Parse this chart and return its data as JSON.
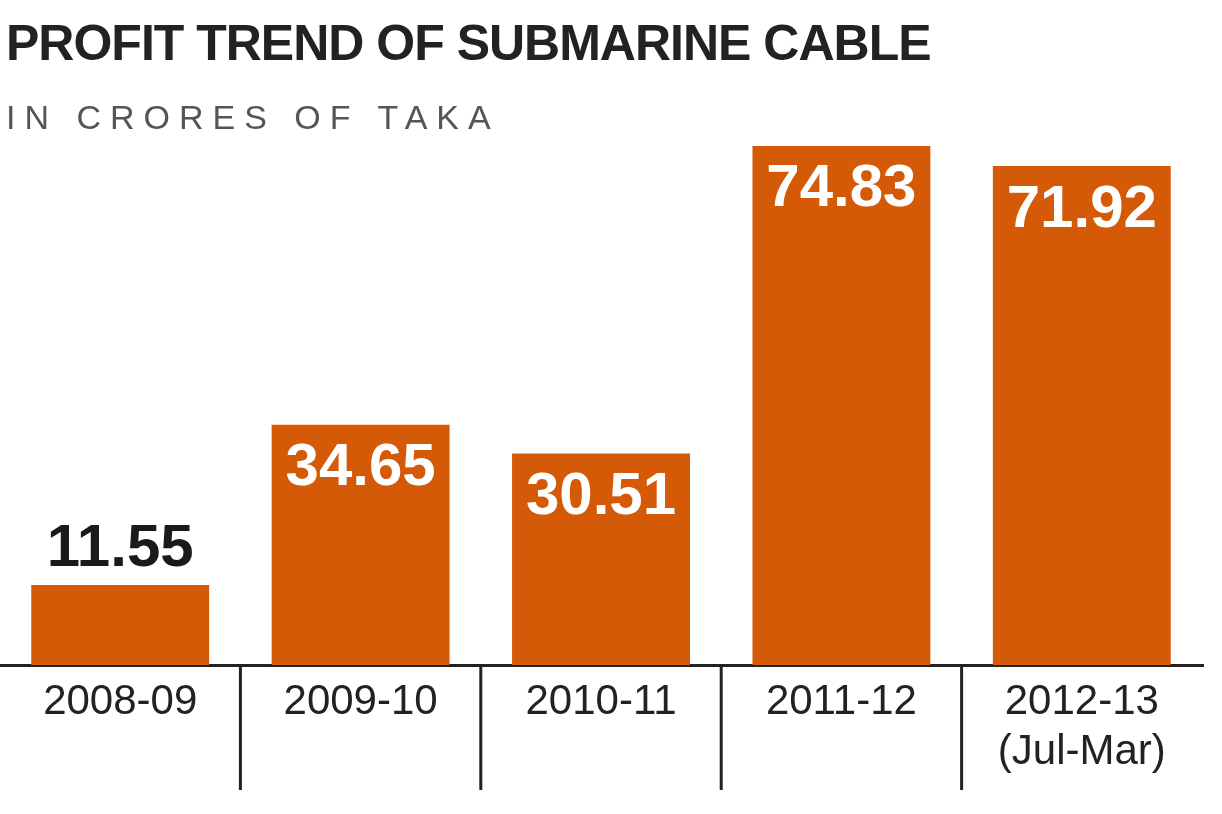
{
  "chart_data": {
    "type": "bar",
    "title": "PROFIT TREND OF SUBMARINE CABLE",
    "subtitle": "IN CRORES OF TAKA",
    "categories": [
      "2008-09",
      "2009-10",
      "2010-11",
      "2011-12",
      "2012-13 (Jul-Mar)"
    ],
    "values": [
      11.55,
      34.65,
      30.51,
      74.83,
      71.92
    ],
    "color": "#d45a08",
    "data_labels": true,
    "legend": false
  }
}
